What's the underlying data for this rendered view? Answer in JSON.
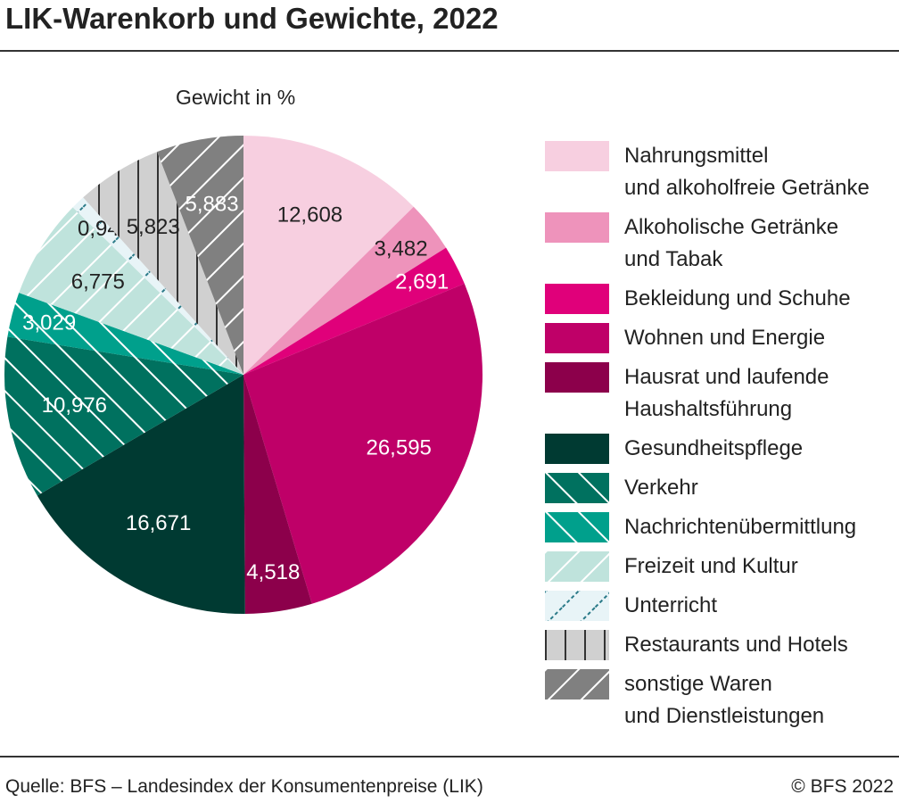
{
  "chart_data": {
    "type": "pie",
    "title": "LIK-Warenkorb und Gewichte, 2022",
    "subtitle": "Gewicht in %",
    "source": "Quelle: BFS – Landesindex der Konsumentenpreise (LIK)",
    "copyright": "© BFS 2022",
    "categories": [
      "Nahrungsmittel\nund alkoholfreie Getränke",
      "Alkoholische Getränke\nund Tabak",
      "Bekleidung und Schuhe",
      "Wohnen und Energie",
      "Hausrat und laufende\nHaushaltsführung",
      "Gesundheitspflege",
      "Verkehr",
      "Nachrichtenübermittlung",
      "Freizeit und Kultur",
      "Unterricht",
      "Restaurants und Hotels",
      "sonstige Waren\nund Dienstleistungen"
    ],
    "values": [
      12.608,
      3.482,
      2.691,
      26.595,
      4.518,
      16.671,
      10.976,
      3.029,
      6.775,
      0.949,
      5.823,
      5.883
    ],
    "value_labels": [
      "12,608",
      "3,482",
      "2,691",
      "26,595",
      "4,518",
      "16,671",
      "10,976",
      "3,029",
      "6,775",
      "0,949",
      "5,823",
      "5,883"
    ],
    "colors": [
      "#f7cfe0",
      "#ee93bb",
      "#e0007a",
      "#bf0068",
      "#8c004b",
      "#003a32",
      "#00715f",
      "#00a08c",
      "#bfe3dc",
      "#e8f4f7",
      "#d0d0d0",
      "#808080"
    ],
    "patterns": [
      "none",
      "none",
      "none",
      "none",
      "none",
      "none",
      "backslash",
      "backslash",
      "slash",
      "slash-dashed",
      "vertical",
      "slash"
    ]
  }
}
